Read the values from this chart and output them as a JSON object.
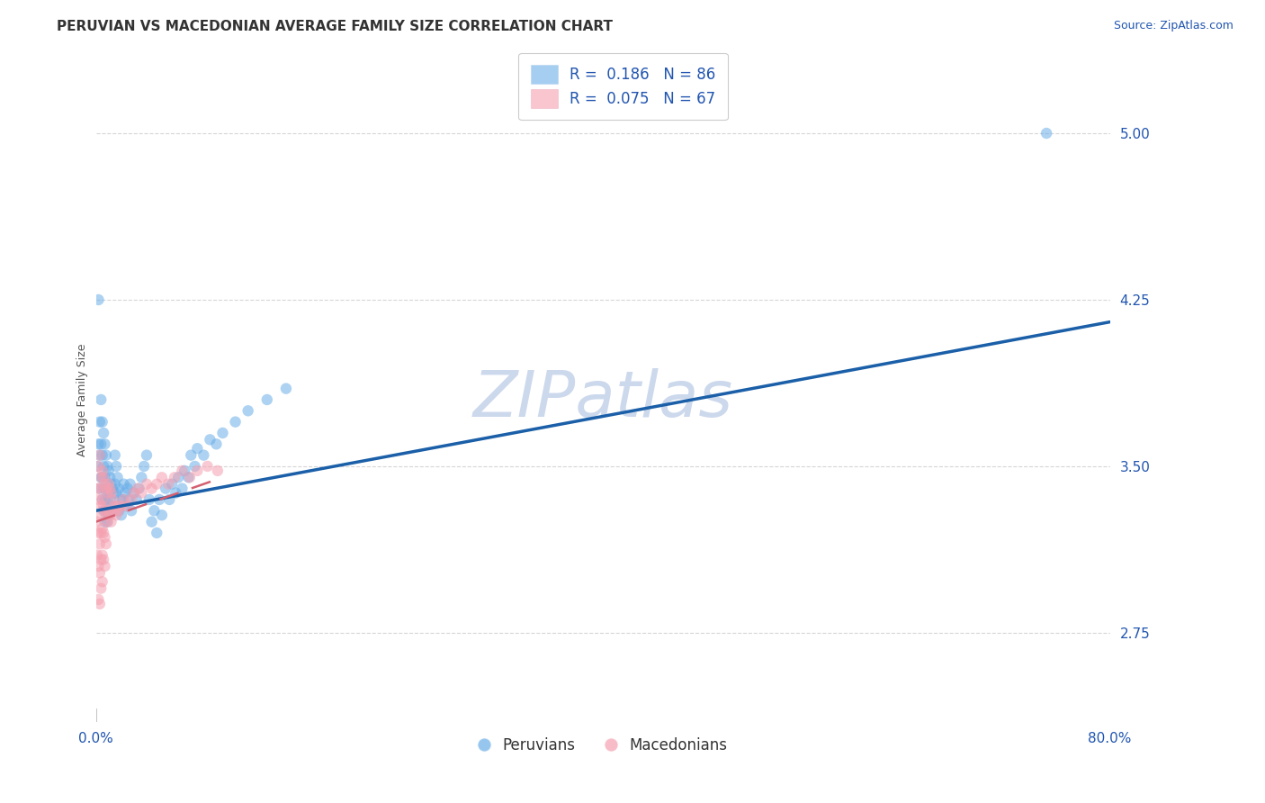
{
  "title": "PERUVIAN VS MACEDONIAN AVERAGE FAMILY SIZE CORRELATION CHART",
  "source": "Source: ZipAtlas.com",
  "ylabel": "Average Family Size",
  "watermark": "ZIPatlas",
  "xlim": [
    0.0,
    0.8
  ],
  "ylim": [
    2.35,
    5.25
  ],
  "yticks": [
    2.75,
    3.5,
    4.25,
    5.0
  ],
  "xticks": [
    0.0,
    0.8
  ],
  "xticklabels": [
    "0.0%",
    "80.0%"
  ],
  "blue_color": "#6aaee8",
  "pink_color": "#f5a0b0",
  "trend_blue": "#1a5fa8",
  "trend_pink": "#d46070",
  "legend_r_blue": "0.186",
  "legend_n_blue": "86",
  "legend_r_pink": "0.075",
  "legend_n_pink": "67",
  "legend_label_blue": "Peruvians",
  "legend_label_pink": "Macedonians",
  "blue_points_x": [
    0.001,
    0.002,
    0.002,
    0.003,
    0.003,
    0.003,
    0.004,
    0.004,
    0.004,
    0.005,
    0.005,
    0.005,
    0.005,
    0.006,
    0.006,
    0.006,
    0.006,
    0.007,
    0.007,
    0.007,
    0.007,
    0.008,
    0.008,
    0.008,
    0.009,
    0.009,
    0.009,
    0.01,
    0.01,
    0.01,
    0.011,
    0.011,
    0.012,
    0.012,
    0.013,
    0.013,
    0.014,
    0.015,
    0.015,
    0.016,
    0.016,
    0.017,
    0.018,
    0.018,
    0.019,
    0.02,
    0.021,
    0.022,
    0.023,
    0.024,
    0.025,
    0.026,
    0.027,
    0.028,
    0.03,
    0.032,
    0.034,
    0.036,
    0.038,
    0.04,
    0.042,
    0.044,
    0.046,
    0.048,
    0.05,
    0.052,
    0.055,
    0.058,
    0.06,
    0.063,
    0.065,
    0.068,
    0.07,
    0.073,
    0.075,
    0.078,
    0.08,
    0.085,
    0.09,
    0.095,
    0.1,
    0.11,
    0.12,
    0.135,
    0.15,
    0.75
  ],
  "blue_points_y": [
    3.5,
    3.6,
    4.25,
    3.7,
    3.55,
    3.4,
    3.8,
    3.6,
    3.45,
    3.7,
    3.55,
    3.45,
    3.35,
    3.65,
    3.5,
    3.4,
    3.3,
    3.6,
    3.45,
    3.35,
    3.25,
    3.55,
    3.4,
    3.3,
    3.5,
    3.35,
    3.25,
    3.48,
    3.38,
    3.28,
    3.45,
    3.35,
    3.42,
    3.32,
    3.4,
    3.3,
    3.38,
    3.55,
    3.42,
    3.5,
    3.38,
    3.45,
    3.4,
    3.3,
    3.35,
    3.28,
    3.35,
    3.42,
    3.38,
    3.32,
    3.4,
    3.35,
    3.42,
    3.3,
    3.38,
    3.35,
    3.4,
    3.45,
    3.5,
    3.55,
    3.35,
    3.25,
    3.3,
    3.2,
    3.35,
    3.28,
    3.4,
    3.35,
    3.42,
    3.38,
    3.45,
    3.4,
    3.48,
    3.45,
    3.55,
    3.5,
    3.58,
    3.55,
    3.62,
    3.6,
    3.65,
    3.7,
    3.75,
    3.8,
    3.85,
    5.0
  ],
  "pink_points_x": [
    0.001,
    0.001,
    0.001,
    0.002,
    0.002,
    0.002,
    0.002,
    0.002,
    0.003,
    0.003,
    0.003,
    0.003,
    0.003,
    0.003,
    0.004,
    0.004,
    0.004,
    0.004,
    0.004,
    0.005,
    0.005,
    0.005,
    0.005,
    0.005,
    0.006,
    0.006,
    0.006,
    0.006,
    0.007,
    0.007,
    0.007,
    0.007,
    0.008,
    0.008,
    0.008,
    0.009,
    0.009,
    0.01,
    0.01,
    0.011,
    0.011,
    0.012,
    0.012,
    0.013,
    0.014,
    0.015,
    0.016,
    0.017,
    0.018,
    0.02,
    0.022,
    0.025,
    0.028,
    0.03,
    0.033,
    0.036,
    0.04,
    0.044,
    0.048,
    0.052,
    0.057,
    0.062,
    0.068,
    0.074,
    0.08,
    0.088,
    0.096
  ],
  "pink_points_y": [
    3.4,
    3.25,
    3.1,
    3.5,
    3.35,
    3.2,
    3.05,
    2.9,
    3.55,
    3.4,
    3.28,
    3.15,
    3.02,
    2.88,
    3.45,
    3.32,
    3.2,
    3.08,
    2.95,
    3.48,
    3.35,
    3.22,
    3.1,
    2.98,
    3.45,
    3.32,
    3.2,
    3.08,
    3.42,
    3.3,
    3.18,
    3.05,
    3.4,
    3.28,
    3.15,
    3.38,
    3.25,
    3.42,
    3.3,
    3.4,
    3.28,
    3.38,
    3.25,
    3.35,
    3.32,
    3.3,
    3.28,
    3.32,
    3.3,
    3.32,
    3.35,
    3.32,
    3.35,
    3.38,
    3.4,
    3.38,
    3.42,
    3.4,
    3.42,
    3.45,
    3.42,
    3.45,
    3.48,
    3.45,
    3.48,
    3.5,
    3.48
  ],
  "blue_trend_x": [
    0.0,
    0.8
  ],
  "blue_trend_y": [
    3.3,
    4.15
  ],
  "pink_trend_x": [
    0.0,
    0.1
  ],
  "pink_trend_y": [
    3.25,
    3.45
  ],
  "background_color": "#ffffff",
  "grid_color": "#cccccc",
  "axis_color": "#2155b0",
  "title_color": "#333333",
  "watermark_color": "#ccd8ec",
  "title_fontsize": 11,
  "axis_label_fontsize": 9,
  "tick_fontsize": 11,
  "legend_fontsize": 12,
  "watermark_fontsize": 52,
  "source_fontsize": 9
}
